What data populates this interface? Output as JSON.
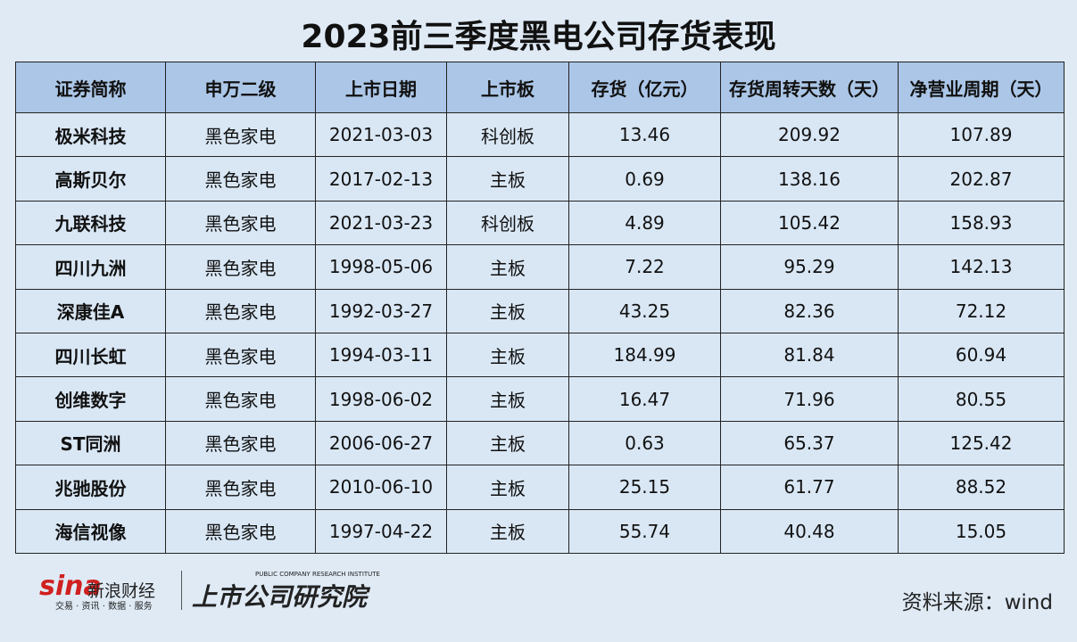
{
  "header": {
    "title": "2023前三季度黑电公司存货表现"
  },
  "table": {
    "columns": [
      "证券简称",
      "申万二级",
      "上市日期",
      "上市板",
      "存货（亿元）",
      "存货周转天数（天）",
      "净营业周期（天）"
    ],
    "rows": [
      [
        "极米科技",
        "黑色家电",
        "2021-03-03",
        "科创板",
        "13.46",
        "209.92",
        "107.89"
      ],
      [
        "高斯贝尔",
        "黑色家电",
        "2017-02-13",
        "主板",
        "0.69",
        "138.16",
        "202.87"
      ],
      [
        "九联科技",
        "黑色家电",
        "2021-03-23",
        "科创板",
        "4.89",
        "105.42",
        "158.93"
      ],
      [
        "四川九洲",
        "黑色家电",
        "1998-05-06",
        "主板",
        "7.22",
        "95.29",
        "142.13"
      ],
      [
        "深康佳A",
        "黑色家电",
        "1992-03-27",
        "主板",
        "43.25",
        "82.36",
        "72.12"
      ],
      [
        "四川长虹",
        "黑色家电",
        "1994-03-11",
        "主板",
        "184.99",
        "81.84",
        "60.94"
      ],
      [
        "创维数字",
        "黑色家电",
        "1998-06-02",
        "主板",
        "16.47",
        "71.96",
        "80.55"
      ],
      [
        "ST同洲",
        "黑色家电",
        "2006-06-27",
        "主板",
        "0.63",
        "65.37",
        "125.42"
      ],
      [
        "兆驰股份",
        "黑色家电",
        "2010-06-10",
        "主板",
        "25.15",
        "61.77",
        "88.52"
      ],
      [
        "海信视像",
        "黑色家电",
        "1997-04-22",
        "主板",
        "55.74",
        "40.48",
        "15.05"
      ]
    ]
  },
  "footer": {
    "sina_logo": "sina",
    "sina_name": "新浪财经",
    "sina_tagline": "交易 · 资讯 · 数据 · 服务",
    "institute_en": "PUBLIC COMPANY RESEARCH INSTITUTE",
    "institute": "上市公司研究院",
    "source": "资料来源：wind"
  }
}
